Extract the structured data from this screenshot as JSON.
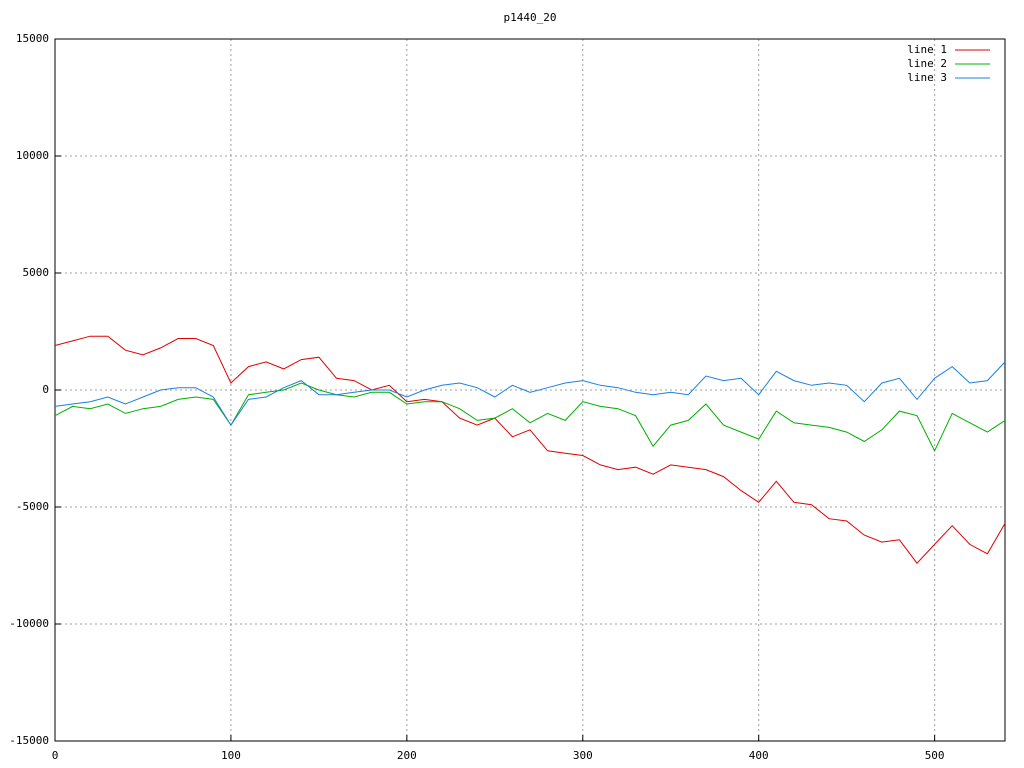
{
  "chart_data": {
    "type": "line",
    "title": "p1440_20",
    "x": [
      0,
      10,
      20,
      30,
      40,
      50,
      60,
      70,
      80,
      90,
      100,
      110,
      120,
      130,
      140,
      150,
      160,
      170,
      180,
      190,
      200,
      210,
      220,
      230,
      240,
      250,
      260,
      270,
      280,
      290,
      300,
      310,
      320,
      330,
      340,
      350,
      360,
      370,
      380,
      390,
      400,
      410,
      420,
      430,
      440,
      450,
      460,
      470,
      480,
      490,
      500,
      510,
      520,
      530,
      540
    ],
    "series": [
      {
        "name": "line 1",
        "color": "#e00000",
        "values": [
          1900,
          2100,
          2300,
          2300,
          1700,
          1500,
          1800,
          2200,
          2200,
          1900,
          300,
          1000,
          1200,
          900,
          1300,
          1400,
          500,
          400,
          0,
          200,
          -500,
          -400,
          -500,
          -1200,
          -1500,
          -1200,
          -2000,
          -1700,
          -2600,
          -2700,
          -2800,
          -3200,
          -3400,
          -3300,
          -3600,
          -3200,
          -3300,
          -3400,
          -3700,
          -4300,
          -4800,
          -3900,
          -4800,
          -4900,
          -5500,
          -5600,
          -6200,
          -6500,
          -6400,
          -7400,
          -6600,
          -5800,
          -6600,
          -7000,
          -5700
        ]
      },
      {
        "name": "line 2",
        "color": "#00b000",
        "values": [
          -1100,
          -700,
          -800,
          -600,
          -1000,
          -800,
          -700,
          -400,
          -300,
          -400,
          -1500,
          -200,
          -100,
          0,
          300,
          0,
          -200,
          -300,
          -100,
          -100,
          -600,
          -500,
          -500,
          -800,
          -1300,
          -1200,
          -800,
          -1400,
          -1000,
          -1300,
          -500,
          -700,
          -800,
          -1100,
          -2400,
          -1500,
          -1300,
          -600,
          -1500,
          -1800,
          -2100,
          -900,
          -1400,
          -1500,
          -1600,
          -1800,
          -2200,
          -1700,
          -900,
          -1100,
          -2600,
          -1000,
          -1400,
          -1800,
          -1300
        ]
      },
      {
        "name": "line 3",
        "color": "#1a80e0",
        "values": [
          -700,
          -600,
          -500,
          -300,
          -600,
          -300,
          0,
          100,
          100,
          -300,
          -1500,
          -400,
          -300,
          100,
          400,
          -200,
          -200,
          -100,
          0,
          0,
          -300,
          0,
          200,
          300,
          100,
          -300,
          200,
          -100,
          100,
          300,
          400,
          200,
          100,
          -100,
          -200,
          -100,
          -200,
          600,
          400,
          500,
          -200,
          800,
          400,
          200,
          300,
          200,
          -500,
          300,
          500,
          -400,
          500,
          1000,
          300,
          400,
          1200
        ]
      }
    ],
    "xlim": [
      0,
      540
    ],
    "xticks": [
      0,
      100,
      200,
      300,
      400,
      500
    ],
    "ylim": [
      -15000,
      15000
    ],
    "yticks": [
      -15000,
      -10000,
      -5000,
      0,
      5000,
      10000,
      15000
    ],
    "grid": true,
    "legend": "top-right"
  }
}
